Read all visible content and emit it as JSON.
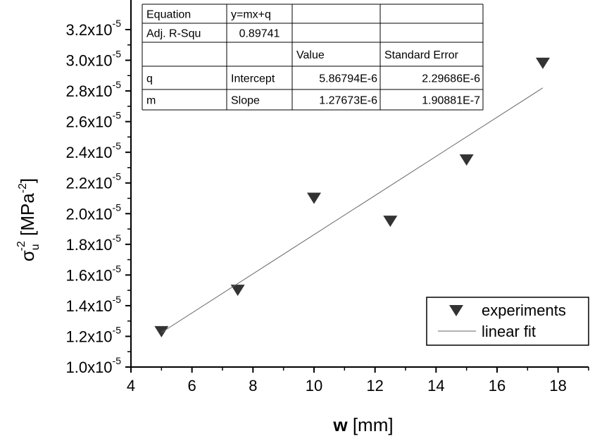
{
  "chart_data": {
    "type": "scatter",
    "xlabel": {
      "main": "w",
      "unit": " [mm]"
    },
    "ylabel": {
      "base": "σ",
      "sub": "u",
      "sup": "-2",
      "unit_open": " [MPa",
      "unit_sup": "-2",
      "unit_close": "]"
    },
    "xlim": [
      4,
      19
    ],
    "ylim": [
      1e-05,
      3.2e-05
    ],
    "x_ticks": [
      4,
      6,
      8,
      10,
      12,
      14,
      16,
      18
    ],
    "y_ticks": [
      {
        "value": 1e-05,
        "mantissa": "1.0x10",
        "exp": "-5"
      },
      {
        "value": 1.2e-05,
        "mantissa": "1.2x10",
        "exp": "-5"
      },
      {
        "value": 1.4e-05,
        "mantissa": "1.4x10",
        "exp": "-5"
      },
      {
        "value": 1.6e-05,
        "mantissa": "1.6x10",
        "exp": "-5"
      },
      {
        "value": 1.8e-05,
        "mantissa": "1.8x10",
        "exp": "-5"
      },
      {
        "value": 2e-05,
        "mantissa": "2.0x10",
        "exp": "-5"
      },
      {
        "value": 2.2e-05,
        "mantissa": "2.2x10",
        "exp": "-5"
      },
      {
        "value": 2.4e-05,
        "mantissa": "2.4x10",
        "exp": "-5"
      },
      {
        "value": 2.6e-05,
        "mantissa": "2.6x10",
        "exp": "-5"
      },
      {
        "value": 2.8e-05,
        "mantissa": "2.8x10",
        "exp": "-5"
      },
      {
        "value": 3e-05,
        "mantissa": "3.0x10",
        "exp": "-5"
      },
      {
        "value": 3.2e-05,
        "mantissa": "3.2x10",
        "exp": "-5"
      }
    ],
    "series": [
      {
        "name": "experiments",
        "kind": "scatter",
        "marker": "triangle-down",
        "color": "#333333",
        "x": [
          5,
          7.5,
          10,
          12.5,
          15,
          17.5
        ],
        "y": [
          1.23e-05,
          1.5e-05,
          2.1e-05,
          1.95e-05,
          2.35e-05,
          2.98e-05
        ]
      },
      {
        "name": "linear fit",
        "kind": "line",
        "color": "#666666",
        "x": [
          5,
          17.5
        ],
        "y": [
          1.225e-05,
          2.82e-05
        ]
      }
    ],
    "legend_position": "bottom-right",
    "grid": false,
    "fit_table": {
      "rows": [
        [
          "Equation",
          "y=mx+q",
          "",
          ""
        ],
        [
          "Adj. R-Squ",
          "0.89741",
          "",
          ""
        ],
        [
          "",
          "",
          "Value",
          "Standard Error"
        ],
        [
          "q",
          "Intercept",
          "5.86794E-6",
          "2.29686E-6"
        ],
        [
          "m",
          "Slope",
          "1.27673E-6",
          "1.90881E-7"
        ]
      ]
    }
  }
}
